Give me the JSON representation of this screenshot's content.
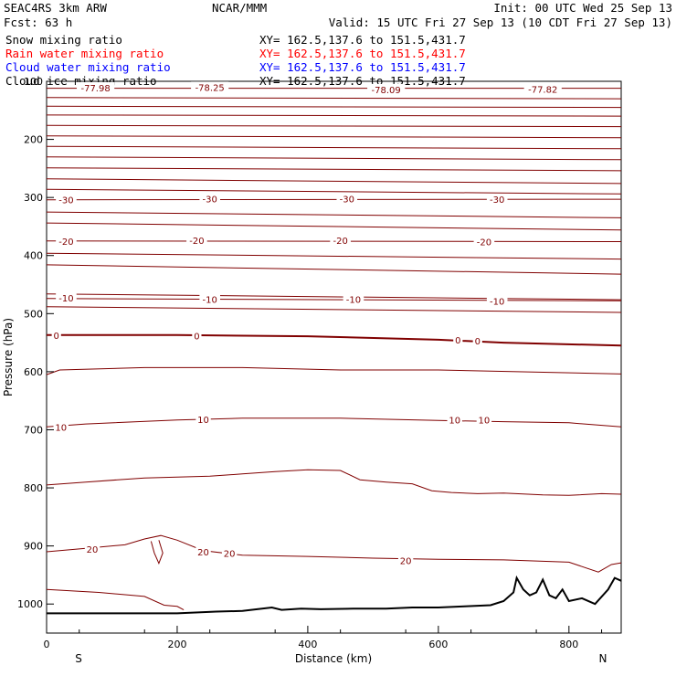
{
  "header": {
    "model": "SEAC4RS  3km ARW",
    "org": "NCAR/MMM",
    "init": "Init: 00 UTC Wed 25 Sep 13",
    "fcst": "Fcst:   63 h",
    "valid": "Valid: 15 UTC Fri 27 Sep 13 (10 CDT Fri 27 Sep 13)"
  },
  "fields": [
    {
      "label": "Snow mixing ratio",
      "xy": "XY= 162.5,137.6 to 151.5,431.7",
      "color": "#000000"
    },
    {
      "label": "Rain water mixing ratio",
      "xy": "XY= 162.5,137.6 to 151.5,431.7",
      "color": "#ff0000"
    },
    {
      "label": "Cloud water mixing ratio",
      "xy": "XY= 162.5,137.6 to 151.5,431.7",
      "color": "#0000ff"
    },
    {
      "label": "Cloud ice mixing ratio",
      "xy": "XY= 162.5,137.6 to 151.5,431.7",
      "color": "#000000"
    }
  ],
  "chart_data": {
    "type": "line",
    "title": "",
    "xlabel": "Distance (km)",
    "ylabel": "Pressure (hPa)",
    "xlim": [
      0,
      880
    ],
    "ylim": [
      1050,
      100
    ],
    "x_ticks": [
      "0",
      "200",
      "400",
      "600",
      "800"
    ],
    "y_ticks": [
      "100",
      "200",
      "300",
      "400",
      "500",
      "600",
      "700",
      "800",
      "900",
      "1000"
    ],
    "direction_labels": {
      "left": "S",
      "right": "N"
    },
    "contour_color": "#800000",
    "terrain_color": "#000000",
    "contour_labels": [
      {
        "text": "-77.98",
        "x": 75,
        "p": 111
      },
      {
        "text": "-78.25",
        "x": 250,
        "p": 110
      },
      {
        "text": "-78.09",
        "x": 520,
        "p": 114
      },
      {
        "text": "-77.82",
        "x": 760,
        "p": 113
      },
      {
        "text": "-30",
        "x": 30,
        "p": 304
      },
      {
        "text": "-30",
        "x": 250,
        "p": 302
      },
      {
        "text": "-30",
        "x": 460,
        "p": 302
      },
      {
        "text": "-30",
        "x": 690,
        "p": 303
      },
      {
        "text": "-20",
        "x": 30,
        "p": 375
      },
      {
        "text": "-20",
        "x": 230,
        "p": 374
      },
      {
        "text": "-20",
        "x": 450,
        "p": 374
      },
      {
        "text": "-20",
        "x": 670,
        "p": 376
      },
      {
        "text": "-10",
        "x": 30,
        "p": 473
      },
      {
        "text": "-10",
        "x": 250,
        "p": 475
      },
      {
        "text": "-10",
        "x": 470,
        "p": 475
      },
      {
        "text": "-10",
        "x": 690,
        "p": 478
      },
      {
        "text": "0",
        "x": 15,
        "p": 537
      },
      {
        "text": "0",
        "x": 230,
        "p": 538
      },
      {
        "text": "0",
        "x": 630,
        "p": 545
      },
      {
        "text": "0",
        "x": 660,
        "p": 547
      },
      {
        "text": "10",
        "x": 22,
        "p": 695
      },
      {
        "text": "10",
        "x": 240,
        "p": 682
      },
      {
        "text": "10",
        "x": 625,
        "p": 683
      },
      {
        "text": "10",
        "x": 670,
        "p": 683
      },
      {
        "text": "20",
        "x": 70,
        "p": 905
      },
      {
        "text": "20",
        "x": 240,
        "p": 910
      },
      {
        "text": "20",
        "x": 280,
        "p": 912
      },
      {
        "text": "20",
        "x": 550,
        "p": 925
      }
    ]
  }
}
